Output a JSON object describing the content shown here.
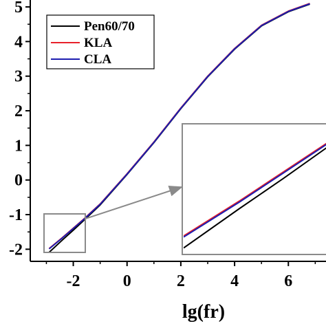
{
  "chart_data": {
    "type": "line",
    "xlabel": "lg(fr)",
    "ylabel": "",
    "xlim": [
      -3.6,
      7.4
    ],
    "ylim": [
      -2.35,
      5.2
    ],
    "x_ticks": [
      "-2",
      "0",
      "2",
      "4",
      "6"
    ],
    "x_tick_values": [
      -2,
      0,
      2,
      4,
      6
    ],
    "y_ticks": [
      "-2",
      "-1",
      "0",
      "1",
      "2",
      "3",
      "4",
      "5"
    ],
    "y_tick_values": [
      -2,
      -1,
      0,
      1,
      2,
      3,
      4,
      5
    ],
    "legend_position": "top-left",
    "grid": false,
    "series": [
      {
        "name": "Pen60/70",
        "color": "#000000",
        "x": [
          -2.9,
          -2.4,
          -2.0,
          -1.6,
          -1.0,
          0.0,
          1.0,
          2.0,
          3.0,
          4.0,
          5.0,
          6.0,
          6.8
        ],
        "y": [
          -2.09,
          -1.73,
          -1.45,
          -1.16,
          -0.72,
          0.16,
          1.08,
          2.06,
          2.98,
          3.78,
          4.45,
          4.86,
          5.08
        ]
      },
      {
        "name": "KLA",
        "color": "#e8202a",
        "x": [
          -2.9,
          -2.4,
          -2.0,
          -1.6,
          -1.0,
          0.0,
          1.0,
          2.0,
          3.0,
          4.0,
          5.0,
          6.0,
          6.8
        ],
        "y": [
          -1.98,
          -1.66,
          -1.39,
          -1.12,
          -0.69,
          0.18,
          1.1,
          2.08,
          3.0,
          3.8,
          4.47,
          4.88,
          5.1
        ]
      },
      {
        "name": "CLA",
        "color": "#1d1db0",
        "x": [
          -2.9,
          -2.4,
          -2.0,
          -1.6,
          -1.0,
          0.0,
          1.0,
          2.0,
          3.0,
          4.0,
          5.0,
          6.0,
          6.8
        ],
        "y": [
          -1.99,
          -1.67,
          -1.4,
          -1.13,
          -0.7,
          0.17,
          1.09,
          2.07,
          2.99,
          3.79,
          4.46,
          4.87,
          5.09
        ]
      }
    ],
    "zoom_window": {
      "xlim": [
        -2.9,
        -1.6
      ],
      "ylim": [
        -2.15,
        -0.95
      ]
    }
  }
}
